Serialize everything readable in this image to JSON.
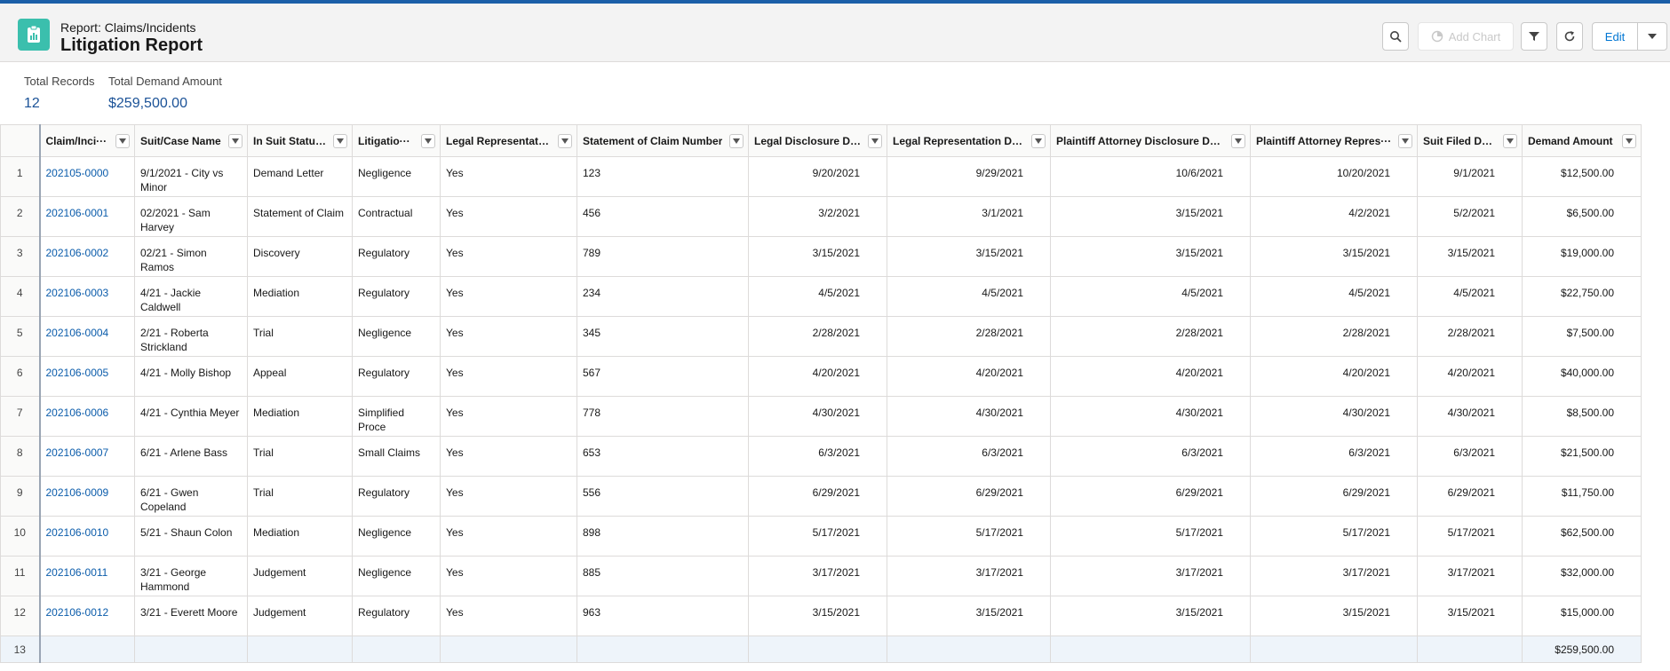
{
  "header": {
    "subtitle": "Report: Claims/Incidents",
    "title": "Litigation Report",
    "buttons": {
      "add_chart": "Add Chart",
      "edit": "Edit"
    }
  },
  "summary": {
    "total_records_label": "Total Records",
    "total_records_value": "12",
    "total_demand_label": "Total Demand Amount",
    "total_demand_value": "$259,500.00"
  },
  "table": {
    "columns": [
      "",
      "Claim/Inci···",
      "Suit/Case Name",
      "In Suit Status?",
      "Litigatio···",
      "Legal Representation",
      "Statement of Claim Number",
      "Legal Disclosure Date",
      "Legal Representation Date",
      "Plaintiff Attorney Disclosure Date",
      "Plaintiff Attorney Repres···",
      "Suit Filed Date",
      "Demand Amount"
    ],
    "rows": [
      [
        "1",
        "202105-0000",
        "9/1/2021 - City vs Minor",
        "Demand Letter",
        "Negligence",
        "Yes",
        "123",
        "9/20/2021",
        "9/29/2021",
        "10/6/2021",
        "10/20/2021",
        "9/1/2021",
        "$12,500.00"
      ],
      [
        "2",
        "202106-0001",
        "02/2021 - Sam Harvey",
        "Statement of Claim",
        "Contractual",
        "Yes",
        "456",
        "3/2/2021",
        "3/1/2021",
        "3/15/2021",
        "4/2/2021",
        "5/2/2021",
        "$6,500.00"
      ],
      [
        "3",
        "202106-0002",
        "02/21 - Simon Ramos",
        "Discovery",
        "Regulatory",
        "Yes",
        "789",
        "3/15/2021",
        "3/15/2021",
        "3/15/2021",
        "3/15/2021",
        "3/15/2021",
        "$19,000.00"
      ],
      [
        "4",
        "202106-0003",
        "4/21 - Jackie Caldwell",
        "Mediation",
        "Regulatory",
        "Yes",
        "234",
        "4/5/2021",
        "4/5/2021",
        "4/5/2021",
        "4/5/2021",
        "4/5/2021",
        "$22,750.00"
      ],
      [
        "5",
        "202106-0004",
        "2/21 - Roberta Strickland",
        "Trial",
        "Negligence",
        "Yes",
        "345",
        "2/28/2021",
        "2/28/2021",
        "2/28/2021",
        "2/28/2021",
        "2/28/2021",
        "$7,500.00"
      ],
      [
        "6",
        "202106-0005",
        "4/21 - Molly Bishop",
        "Appeal",
        "Regulatory",
        "Yes",
        "567",
        "4/20/2021",
        "4/20/2021",
        "4/20/2021",
        "4/20/2021",
        "4/20/2021",
        "$40,000.00"
      ],
      [
        "7",
        "202106-0006",
        "4/21 - Cynthia Meyer",
        "Mediation",
        "Simplified Proce",
        "Yes",
        "778",
        "4/30/2021",
        "4/30/2021",
        "4/30/2021",
        "4/30/2021",
        "4/30/2021",
        "$8,500.00"
      ],
      [
        "8",
        "202106-0007",
        "6/21 - Arlene Bass",
        "Trial",
        "Small Claims",
        "Yes",
        "653",
        "6/3/2021",
        "6/3/2021",
        "6/3/2021",
        "6/3/2021",
        "6/3/2021",
        "$21,500.00"
      ],
      [
        "9",
        "202106-0009",
        "6/21 - Gwen Copeland",
        "Trial",
        "Regulatory",
        "Yes",
        "556",
        "6/29/2021",
        "6/29/2021",
        "6/29/2021",
        "6/29/2021",
        "6/29/2021",
        "$11,750.00"
      ],
      [
        "10",
        "202106-0010",
        "5/21 - Shaun Colon",
        "Mediation",
        "Negligence",
        "Yes",
        "898",
        "5/17/2021",
        "5/17/2021",
        "5/17/2021",
        "5/17/2021",
        "5/17/2021",
        "$62,500.00"
      ],
      [
        "11",
        "202106-0011",
        "3/21 - George Hammond",
        "Judgement",
        "Negligence",
        "Yes",
        "885",
        "3/17/2021",
        "3/17/2021",
        "3/17/2021",
        "3/17/2021",
        "3/17/2021",
        "$32,000.00"
      ],
      [
        "12",
        "202106-0012",
        "3/21 - Everett Moore",
        "Judgement",
        "Regulatory",
        "Yes",
        "963",
        "3/15/2021",
        "3/15/2021",
        "3/15/2021",
        "3/15/2021",
        "3/15/2021",
        "$15,000.00"
      ]
    ],
    "total_row": {
      "row_number": "13",
      "demand_total": "$259,500.00"
    }
  },
  "icons": {
    "app": "clipboard-report-icon",
    "search": "search-icon",
    "add_chart": "chart-icon",
    "filter": "filter-icon",
    "refresh": "refresh-icon",
    "edit_menu": "chevron-down-icon",
    "column_menu": "chevron-down-icon"
  },
  "colors": {
    "link": "#0b5cab",
    "app_icon": "#3bbfad",
    "summary_value": "#1b5297"
  }
}
